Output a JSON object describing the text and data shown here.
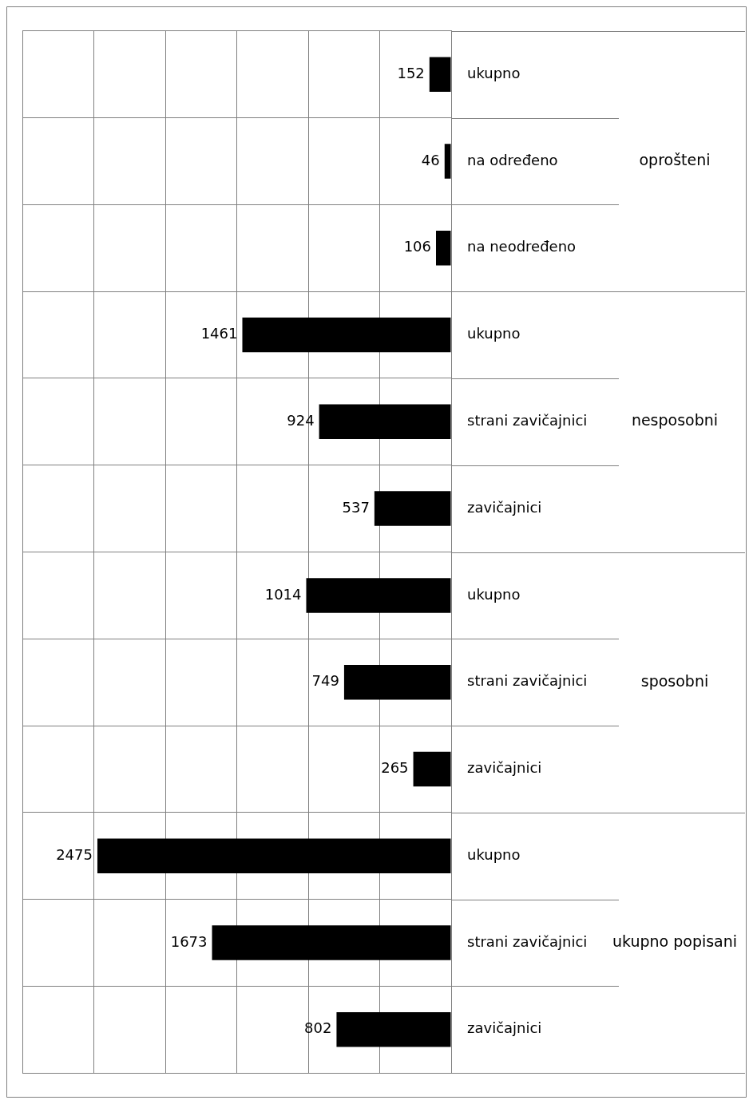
{
  "chart_data": {
    "type": "bar",
    "orientation": "horizontal",
    "categories": [
      "ukupno",
      "na određeno",
      "na neodređeno",
      "ukupno",
      "strani zavičajnici",
      "zavičajnici",
      "ukupno",
      "strani zavičajnici",
      "zavičajnici",
      "ukupno",
      "strani zavičajnici",
      "zavičajnici"
    ],
    "values": [
      152,
      46,
      106,
      1461,
      924,
      537,
      1014,
      749,
      265,
      2475,
      1673,
      802
    ],
    "color": "#000000",
    "xlim": [
      3000,
      0
    ],
    "xticks": [
      {
        "value": 0,
        "label": null
      },
      {
        "value": 500,
        "label": null
      },
      {
        "value": 1000,
        "label": null
      },
      {
        "value": 1500,
        "label": null
      },
      {
        "value": 2000,
        "label": null
      },
      {
        "value": 2500,
        "label": null
      },
      {
        "value": 3000,
        "label": null
      }
    ],
    "tick_labels": "y",
    "grid": true,
    "data_labels": true,
    "legend": false,
    "annotations": [
      "oprošteni",
      "nesposobni",
      "sposobni",
      "ukupno popisani"
    ]
  }
}
